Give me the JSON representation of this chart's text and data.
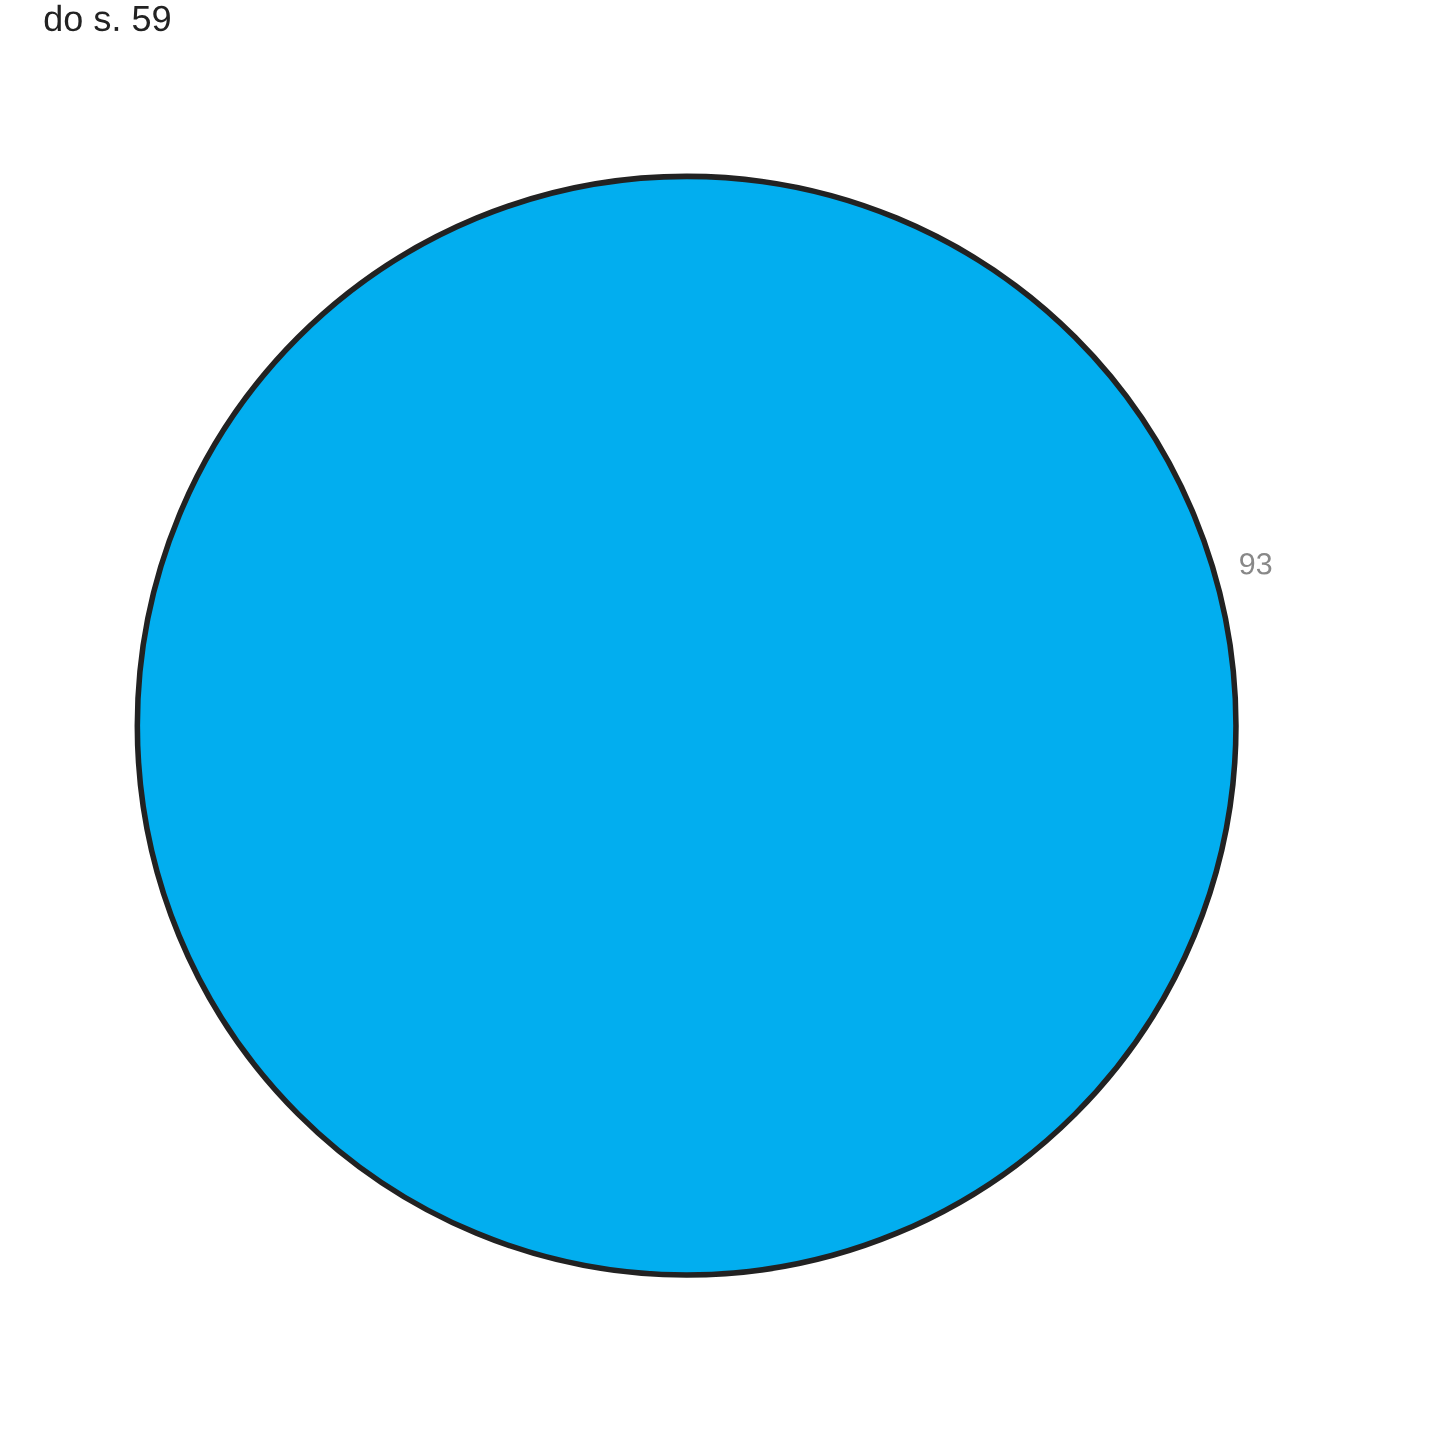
{
  "chart_data": {
    "type": "pie",
    "title": "do s. 59",
    "categories": [
      null
    ],
    "values": [
      93
    ],
    "colors": [
      "#02aeef"
    ],
    "data_labels": true
  }
}
